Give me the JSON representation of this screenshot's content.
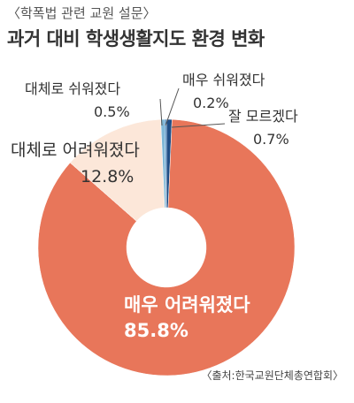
{
  "header": {
    "subtitle": "〈학폭법 관련 교원 설문〉",
    "title": "과거 대비 학생생활지도 환경 변화"
  },
  "source": "〈출처:한국교원단체총연합회〉",
  "colors": {
    "very_hard": "#E8765A",
    "somewhat_hard": "#FCE7D9",
    "somewhat_easy": "#7FB8D8",
    "very_easy": "#2E78B8",
    "dont_know": "#1F4E86",
    "label_dark": "#333333",
    "label_light": "#ffffff"
  },
  "chart_data": {
    "type": "pie",
    "donut": true,
    "title": "과거 대비 학생생활지도 환경 변화",
    "slices": [
      {
        "label": "매우 어려워졌다",
        "value": 85.8,
        "display": "85.8%",
        "color_key": "very_hard"
      },
      {
        "label": "대체로 어려워졌다",
        "value": 12.8,
        "display": "12.8%",
        "color_key": "somewhat_hard"
      },
      {
        "label": "대체로 쉬워졌다",
        "value": 0.5,
        "display": "0.5%",
        "color_key": "somewhat_easy"
      },
      {
        "label": "매우 쉬워졌다",
        "value": 0.2,
        "display": "0.2%",
        "color_key": "very_easy"
      },
      {
        "label": "잘 모르겠다",
        "value": 0.7,
        "display": "0.7%",
        "color_key": "dont_know"
      }
    ]
  }
}
